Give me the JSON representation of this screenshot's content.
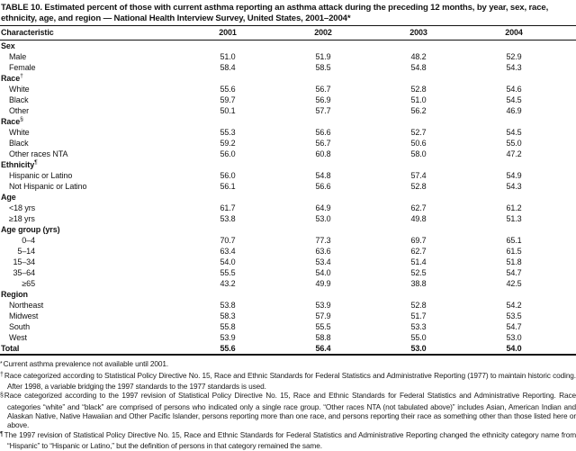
{
  "title": "TABLE 10. Estimated percent of those with current asthma reporting an asthma attack during the preceding 12 months, by year, sex, race, ethnicity, age, and region — National Health Interview Survey, United States, 2001–2004*",
  "chart_data": {
    "type": "table",
    "title": "Estimated percent of those with current asthma reporting an asthma attack during the preceding 12 months",
    "columns": [
      "Characteristic",
      "2001",
      "2002",
      "2003",
      "2004"
    ]
  },
  "table": {
    "columns": [
      "Characteristic",
      "2001",
      "2002",
      "2003",
      "2004"
    ],
    "rows": [
      {
        "t": "sec",
        "label": "Sex"
      },
      {
        "t": "item",
        "label": "Male",
        "v": [
          "51.0",
          "51.9",
          "48.2",
          "52.9"
        ]
      },
      {
        "t": "item",
        "label": "Female",
        "v": [
          "58.4",
          "58.5",
          "54.8",
          "54.3"
        ]
      },
      {
        "t": "sec",
        "label": "Race",
        "sup": "†"
      },
      {
        "t": "item",
        "label": "White",
        "v": [
          "55.6",
          "56.7",
          "52.8",
          "54.6"
        ]
      },
      {
        "t": "item",
        "label": "Black",
        "v": [
          "59.7",
          "56.9",
          "51.0",
          "54.5"
        ]
      },
      {
        "t": "item",
        "label": "Other",
        "v": [
          "50.1",
          "57.7",
          "56.2",
          "46.9"
        ]
      },
      {
        "t": "sec",
        "label": "Race",
        "sup": "§"
      },
      {
        "t": "item",
        "label": "White",
        "v": [
          "55.3",
          "56.6",
          "52.7",
          "54.5"
        ]
      },
      {
        "t": "item",
        "label": "Black",
        "v": [
          "59.2",
          "56.7",
          "50.6",
          "55.0"
        ]
      },
      {
        "t": "item",
        "label": "Other races NTA",
        "v": [
          "56.0",
          "60.8",
          "58.0",
          "47.2"
        ]
      },
      {
        "t": "sec",
        "label": "Ethnicity",
        "sup": "¶"
      },
      {
        "t": "item",
        "label": "Hispanic or Latino",
        "v": [
          "56.0",
          "54.8",
          "57.4",
          "54.9"
        ]
      },
      {
        "t": "item",
        "label": "Not Hispanic or Latino",
        "v": [
          "56.1",
          "56.6",
          "52.8",
          "54.3"
        ]
      },
      {
        "t": "sec",
        "label": "Age"
      },
      {
        "t": "item",
        "label": "<18 yrs",
        "v": [
          "61.7",
          "64.9",
          "62.7",
          "61.2"
        ]
      },
      {
        "t": "item",
        "label": "≥18 yrs",
        "v": [
          "53.8",
          "53.0",
          "49.8",
          "51.3"
        ]
      },
      {
        "t": "sec",
        "label": "Age group (yrs)"
      },
      {
        "t": "num",
        "label": "0–4",
        "v": [
          "70.7",
          "77.3",
          "69.7",
          "65.1"
        ]
      },
      {
        "t": "num",
        "label": "5–14",
        "v": [
          "63.4",
          "63.6",
          "62.7",
          "61.5"
        ]
      },
      {
        "t": "num",
        "label": "15–34",
        "v": [
          "54.0",
          "53.4",
          "51.4",
          "51.8"
        ]
      },
      {
        "t": "num",
        "label": "35–64",
        "v": [
          "55.5",
          "54.0",
          "52.5",
          "54.7"
        ]
      },
      {
        "t": "num",
        "label": "≥65",
        "v": [
          "43.2",
          "49.9",
          "38.8",
          "42.5"
        ]
      },
      {
        "t": "sec",
        "label": "Region"
      },
      {
        "t": "item",
        "label": "Northeast",
        "v": [
          "53.8",
          "53.9",
          "52.8",
          "54.2"
        ]
      },
      {
        "t": "item",
        "label": "Midwest",
        "v": [
          "58.3",
          "57.9",
          "51.7",
          "53.5"
        ]
      },
      {
        "t": "item",
        "label": "South",
        "v": [
          "55.8",
          "55.5",
          "53.3",
          "54.7"
        ]
      },
      {
        "t": "item",
        "label": "West",
        "v": [
          "53.9",
          "58.8",
          "55.0",
          "53.0"
        ]
      },
      {
        "t": "total",
        "label": "Total",
        "v": [
          "55.6",
          "56.4",
          "53.0",
          "54.0"
        ]
      }
    ]
  },
  "footnotes": [
    {
      "marker": "*",
      "text": "Current asthma prevalence not available until 2001."
    },
    {
      "marker": "†",
      "text": "Race categorized according to Statistical Policy Directive No. 15, Race and Ethnic Standards for Federal Statistics and Administrative Reporting (1977) to maintain historic coding. After 1998, a variable bridging the 1997 standards to the 1977 standards is used."
    },
    {
      "marker": "§",
      "text": "Race categorized according to the 1997 revision of Statistical Policy Directive No. 15, Race and Ethnic Standards for Federal Statistics and Administrative Reporting. Race categories “white” and “black” are comprised of persons who indicated only a single race group. “Other races NTA (not tabulated above)” includes Asian, American Indian and Alaskan Native, Native Hawaiian and Other Pacific Islander, persons reporting more than one race, and persons reporting their race as something other than those listed here or above."
    },
    {
      "marker": "¶",
      "text": "The 1997 revision of Statistical Policy Directive No. 15, Race and Ethnic Standards for Federal Statistics and Administrative Reporting changed the ethnicity category name from “Hispanic” to “Hispanic or Latino,” but the definition of persons in that category remained the same."
    }
  ]
}
